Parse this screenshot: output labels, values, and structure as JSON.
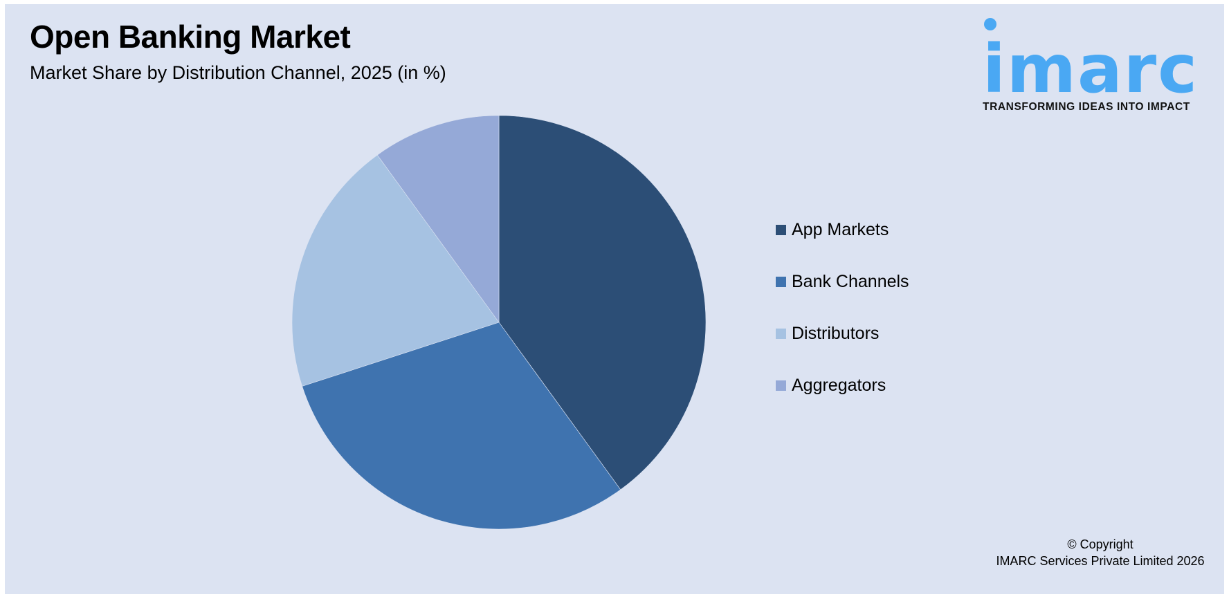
{
  "header": {
    "title": "Open Banking Market",
    "subtitle": "Market Share by Distribution Channel, 2025 (in %)"
  },
  "logo": {
    "wordmark": "imarc",
    "tagline": "TRANSFORMING IDEAS INTO IMPACT",
    "color": "#4AA8F3"
  },
  "legend": {
    "items": [
      {
        "label": "App Markets",
        "color": "#2C4E76"
      },
      {
        "label": "Bank Channels",
        "color": "#3F73AF"
      },
      {
        "label": "Distributors",
        "color": "#A6C2E2"
      },
      {
        "label": "Aggregators",
        "color": "#95A9D7"
      }
    ]
  },
  "footer": {
    "line1": "© Copyright",
    "line2": "IMARC Services Private Limited 2026"
  },
  "colors": {
    "background": "#DCE3F2",
    "frame": "#FFFFFF"
  },
  "chart_data": {
    "type": "pie",
    "title": "Open Banking Market",
    "subtitle": "Market Share by Distribution Channel, 2025 (in %)",
    "categories": [
      "App Markets",
      "Bank Channels",
      "Distributors",
      "Aggregators"
    ],
    "values": [
      40,
      30,
      20,
      10
    ],
    "colors": [
      "#2C4E76",
      "#3F73AF",
      "#A6C2E2",
      "#95A9D7"
    ],
    "start_angle": "12 o'clock, clockwise",
    "legend_position": "right",
    "data_labels": false
  }
}
